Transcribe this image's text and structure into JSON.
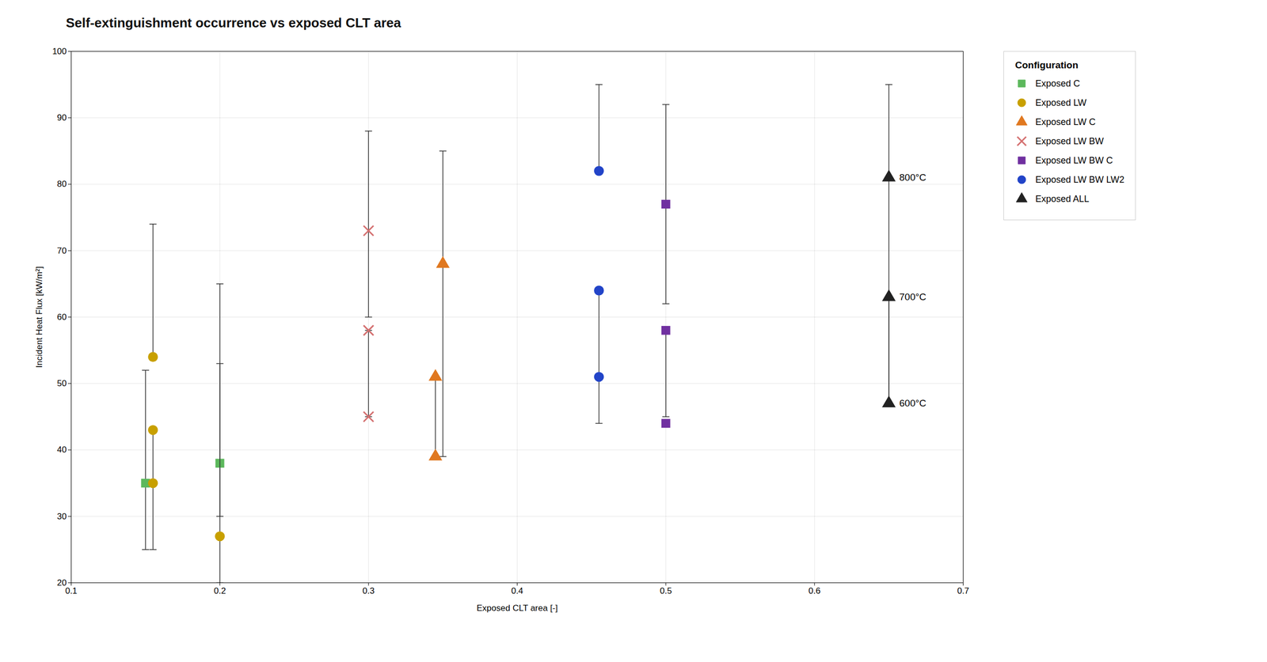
{
  "chart_data": {
    "type": "scatter",
    "title": "Self-extinguishment occurrence vs exposed CLT area",
    "xlabel": "Exposed CLT area [-]",
    "ylabel": "Incident Heat Flux [kW/m²]",
    "xlim": [
      0.1,
      0.7
    ],
    "ylim": [
      20,
      100
    ],
    "xticks": [
      0.1,
      0.2,
      0.3,
      0.4,
      0.5,
      0.6,
      0.7
    ],
    "yticks": [
      20,
      30,
      40,
      50,
      60,
      70,
      80,
      90,
      100
    ],
    "grid": true,
    "legend": "right",
    "legend_title": "Configuration",
    "series": [
      {
        "name": "Exposed C",
        "color": "#5cb85c",
        "marker": "square",
        "x": [
          0.15,
          0.2
        ],
        "values": [
          35,
          38
        ],
        "error_low": [
          10,
          8
        ],
        "error_high": [
          17,
          15
        ]
      },
      {
        "name": "Exposed LW",
        "color": "#c8a000",
        "marker": "circle",
        "x": [
          0.155,
          0.155,
          0.155,
          0.2
        ],
        "values": [
          54,
          43,
          35,
          27
        ],
        "error_low": [
          0,
          8,
          10,
          7
        ],
        "error_high": [
          20,
          0,
          0,
          38
        ]
      },
      {
        "name": "Exposed LW C",
        "color": "#e07820",
        "marker": "triangle",
        "x": [
          0.35,
          0.345,
          0.345
        ],
        "values": [
          68,
          51,
          39
        ],
        "error_low": [
          29,
          12,
          0
        ],
        "error_high": [
          17,
          0,
          0
        ]
      },
      {
        "name": "Exposed LW BW",
        "color": "#d47070",
        "marker": "x",
        "x": [
          0.3,
          0.3,
          0.3
        ],
        "values": [
          73,
          58,
          45
        ],
        "error_low": [
          13,
          13,
          0
        ],
        "error_high": [
          15,
          0,
          0
        ]
      },
      {
        "name": "Exposed LW BW C",
        "color": "#7030a0",
        "marker": "square",
        "x": [
          0.5,
          0.5,
          0.5
        ],
        "values": [
          77,
          58,
          44
        ],
        "error_low": [
          15,
          13,
          0
        ],
        "error_high": [
          15,
          0,
          0
        ]
      },
      {
        "name": "Exposed LW BW LW2",
        "color": "#2244c8",
        "marker": "circle",
        "x": [
          0.455,
          0.455,
          0.455
        ],
        "values": [
          82,
          64,
          51
        ],
        "error_low": [
          0,
          13,
          7
        ],
        "error_high": [
          13,
          0,
          0
        ]
      },
      {
        "name": "Exposed ALL",
        "color": "#222222",
        "marker": "triangle",
        "x": [
          0.65,
          0.65,
          0.65
        ],
        "values": [
          81,
          63,
          47
        ],
        "error_low": [
          34,
          16,
          0
        ],
        "error_high": [
          14,
          0,
          0
        ]
      }
    ],
    "annotations": [
      {
        "x": 0.655,
        "y": 81,
        "text": "800°C"
      },
      {
        "x": 0.655,
        "y": 63,
        "text": "700°C"
      },
      {
        "x": 0.655,
        "y": 47,
        "text": "600°C"
      }
    ]
  }
}
